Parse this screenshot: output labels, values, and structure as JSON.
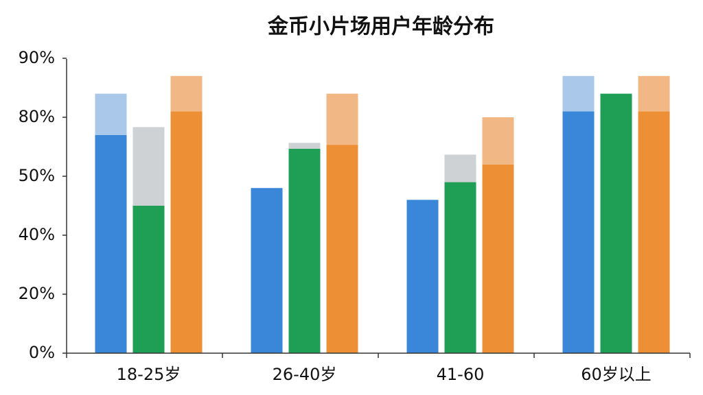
{
  "chart_data": {
    "type": "bar",
    "title": "金币小片场用户年龄分布",
    "categories": [
      "18-25岁",
      "26-40岁",
      "41-60",
      "60岁以上"
    ],
    "stacked_pairs": true,
    "series": [
      {
        "color": "#3a86d8",
        "values": [
          71,
          48,
          46,
          81
        ]
      },
      {
        "color": "#a9c8ea",
        "values": [
          13,
          0,
          0,
          6
        ]
      },
      {
        "color": "#1f9e55",
        "values": [
          45,
          64,
          49,
          84
        ]
      },
      {
        "color": "#cfd2d4",
        "values": [
          30,
          3,
          12,
          0
        ]
      },
      {
        "color": "#ec8f35",
        "values": [
          81,
          66,
          56,
          81
        ]
      },
      {
        "color": "#f1b886",
        "values": [
          6,
          18,
          24,
          6
        ]
      }
    ],
    "ylim": [
      0,
      90
    ],
    "yticks": [
      {
        "value": 0,
        "label": "0%"
      },
      {
        "value": 20,
        "label": "20%"
      },
      {
        "value": 40,
        "label": "40%"
      },
      {
        "value": 50,
        "label": "50%"
      },
      {
        "value": 80,
        "label": "80%"
      },
      {
        "value": 90,
        "label": "90%"
      }
    ]
  }
}
